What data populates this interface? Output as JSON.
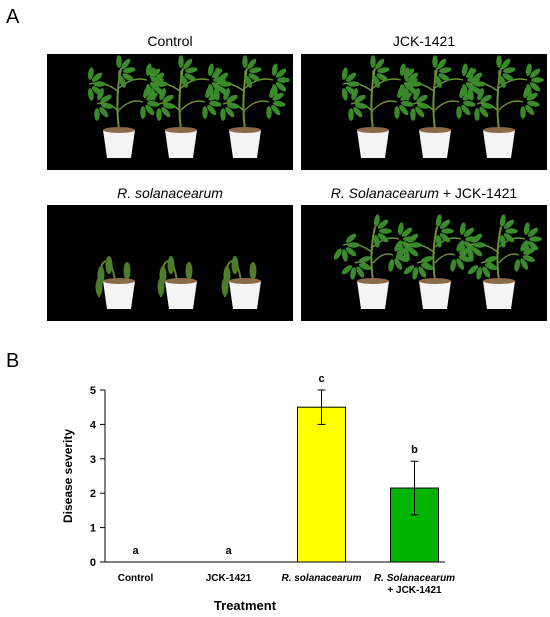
{
  "panel_a": {
    "letter": "A",
    "photos": [
      {
        "title": "Control",
        "state": "healthy"
      },
      {
        "title": "JCK-1421",
        "state": "healthy"
      },
      {
        "title": "R. solanacearum",
        "title_italic": true,
        "state": "wilted"
      },
      {
        "title_italic_part": "R. Solanacearum",
        "title_rest": " + JCK-1421",
        "state": "partial"
      }
    ]
  },
  "panel_b": {
    "letter": "B"
  },
  "colors": {
    "yellow_bar": "#ffff00",
    "green_bar": "#00b400",
    "photo_bg": "#000000",
    "leaf": "#3a8a2c",
    "pot": "#f4f4f4"
  },
  "chart_data": {
    "type": "bar",
    "categories": [
      "Control",
      "JCK-1421",
      "R. solanacearum",
      "R. Solanacearum + JCK-1421"
    ],
    "category_label_lines": [
      [
        "Control"
      ],
      [
        "JCK-1421"
      ],
      [
        "R. solanacearum"
      ],
      [
        "R. Solanacearum",
        "+ JCK-1421"
      ]
    ],
    "category_label_italic": [
      false,
      false,
      true,
      false
    ],
    "values": [
      0,
      0,
      4.5,
      2.15
    ],
    "errors": [
      0,
      0,
      0.5,
      0.78
    ],
    "significance": [
      "a",
      "a",
      "c",
      "b"
    ],
    "bar_colors": [
      "#ffff00",
      "#ffff00",
      "#ffff00",
      "#00b400"
    ],
    "xlabel": "Treatment",
    "ylabel": "Disease severity",
    "ylim": [
      0,
      5
    ],
    "yticks": [
      0,
      1,
      2,
      3,
      4,
      5
    ]
  }
}
